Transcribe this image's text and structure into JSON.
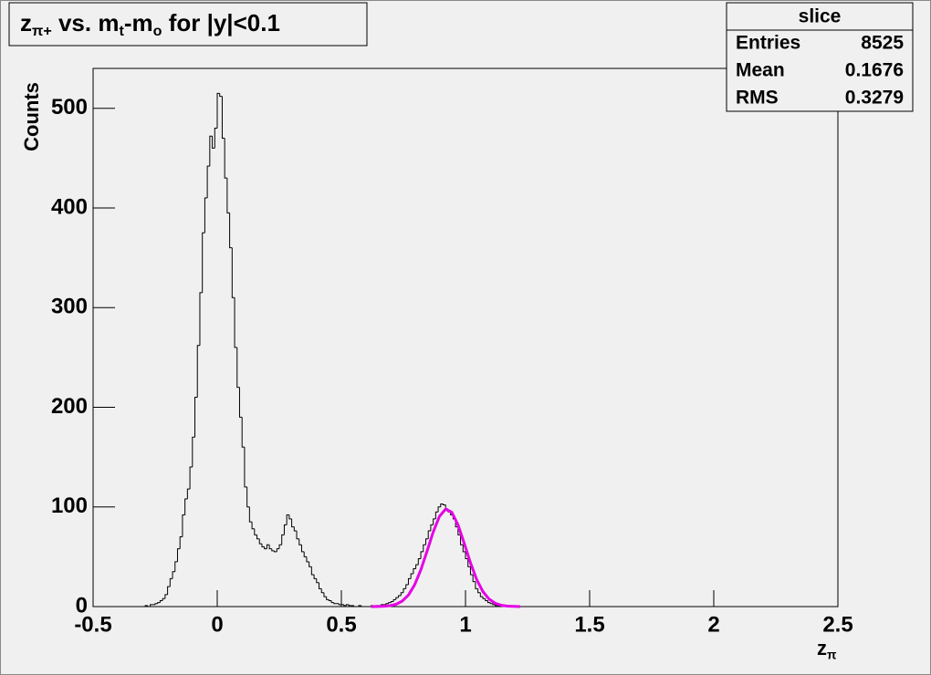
{
  "chart_data": {
    "type": "histogram",
    "title": [
      {
        "text": "z"
      },
      {
        "text": "π+",
        "sub": true
      },
      {
        "text": " vs. m"
      },
      {
        "text": "t",
        "sub": true
      },
      {
        "text": "-m"
      },
      {
        "text": "o",
        "sub": true
      },
      {
        "text": " for |y|<0.1"
      }
    ],
    "x_label": [
      {
        "text": "z"
      },
      {
        "text": "π",
        "sub": true
      }
    ],
    "y_label": "Counts",
    "stats": {
      "title": "slice",
      "rows": [
        [
          "Entries",
          "8525"
        ],
        [
          "Mean",
          "0.1676"
        ],
        [
          "RMS",
          "0.3279"
        ]
      ]
    },
    "color": "#000000",
    "bins": [
      -0.3,
      -0.29,
      -0.28,
      -0.27,
      -0.26,
      -0.25,
      -0.24,
      -0.23,
      -0.22,
      -0.21,
      -0.2,
      -0.19,
      -0.18,
      -0.17,
      -0.16,
      -0.15,
      -0.14,
      -0.13,
      -0.12,
      -0.11,
      -0.1,
      -0.09,
      -0.08,
      -0.07,
      -0.06,
      -0.05,
      -0.04,
      -0.03,
      -0.02,
      -0.01,
      0,
      0.01,
      0.02,
      0.03,
      0.04,
      0.05,
      0.06,
      0.07,
      0.08,
      0.09,
      0.1,
      0.11,
      0.12,
      0.13,
      0.14,
      0.15,
      0.16,
      0.17,
      0.18,
      0.19,
      0.2,
      0.21,
      0.22,
      0.23,
      0.24,
      0.25,
      0.26,
      0.27,
      0.28,
      0.29,
      0.3,
      0.31,
      0.32,
      0.33,
      0.34,
      0.35,
      0.36,
      0.37,
      0.38,
      0.39,
      0.4,
      0.41,
      0.42,
      0.43,
      0.44,
      0.45,
      0.46,
      0.47,
      0.48,
      0.49,
      0.5,
      0.51,
      0.52,
      0.53,
      0.54,
      0.55,
      0.56,
      0.57,
      0.58,
      0.59,
      0.6,
      0.61,
      0.62,
      0.63,
      0.64,
      0.65,
      0.66,
      0.67,
      0.68,
      0.69,
      0.7,
      0.71,
      0.72,
      0.73,
      0.74,
      0.75,
      0.76,
      0.77,
      0.78,
      0.79,
      0.8,
      0.81,
      0.82,
      0.83,
      0.84,
      0.85,
      0.86,
      0.87,
      0.88,
      0.89,
      0.9,
      0.91,
      0.92,
      0.93,
      0.94,
      0.95,
      0.96,
      0.97,
      0.98,
      0.99,
      1,
      1.01,
      1.02,
      1.03,
      1.04,
      1.05,
      1.06,
      1.07,
      1.08,
      1.09,
      1.1,
      1.11,
      1.12,
      1.13,
      1.14,
      1.15,
      1.16,
      1.17,
      1.18,
      1.19,
      1.2
    ],
    "values": [
      0,
      1,
      0,
      2,
      2,
      3,
      4,
      6,
      8,
      12,
      20,
      28,
      35,
      45,
      58,
      70,
      92,
      108,
      118,
      140,
      170,
      210,
      262,
      315,
      375,
      410,
      442,
      472,
      460,
      480,
      515,
      512,
      470,
      430,
      395,
      360,
      310,
      260,
      220,
      190,
      160,
      120,
      100,
      85,
      78,
      72,
      68,
      63,
      60,
      58,
      62,
      58,
      56,
      55,
      58,
      62,
      72,
      82,
      92,
      88,
      80,
      76,
      68,
      62,
      55,
      50,
      45,
      40,
      32,
      28,
      24,
      18,
      14,
      10,
      7,
      6,
      4,
      3,
      3,
      2,
      2,
      1,
      2,
      1,
      1,
      0,
      0,
      1,
      0,
      0,
      0,
      0,
      1,
      0,
      1,
      1,
      2,
      2,
      3,
      4,
      5,
      7,
      9,
      11,
      14,
      18,
      22,
      28,
      33,
      38,
      42,
      48,
      55,
      62,
      68,
      76,
      82,
      88,
      95,
      100,
      103,
      102,
      98,
      95,
      92,
      88,
      80,
      72,
      62,
      55,
      48,
      40,
      32,
      25,
      18,
      14,
      10,
      8,
      6,
      4,
      3,
      2,
      1,
      1,
      0,
      0,
      0,
      0,
      0,
      0
    ],
    "fit": {
      "color": "#e600e6",
      "x": [
        0.62,
        0.645,
        0.67,
        0.695,
        0.72,
        0.745,
        0.77,
        0.795,
        0.82,
        0.845,
        0.87,
        0.895,
        0.92,
        0.945,
        0.97,
        0.995,
        1.02,
        1.045,
        1.07,
        1.095,
        1.12,
        1.145,
        1.17,
        1.195,
        1.22
      ],
      "values": [
        0,
        0.1,
        0.3,
        0.9,
        2.3,
        5.5,
        11.5,
        21.8,
        36.8,
        55.5,
        74.9,
        90.5,
        97.8,
        94.6,
        81.9,
        63.4,
        43.9,
        27.2,
        15.1,
        7.5,
        3.3,
        1.3,
        0.5,
        0.2,
        0
      ]
    },
    "xlim": [
      -0.5,
      2.5
    ],
    "xticks": [
      -0.5,
      0,
      0.5,
      1,
      1.5,
      2,
      2.5
    ],
    "ylim": [
      0,
      540
    ],
    "yticks": [
      0,
      100,
      200,
      300,
      400,
      500
    ]
  }
}
